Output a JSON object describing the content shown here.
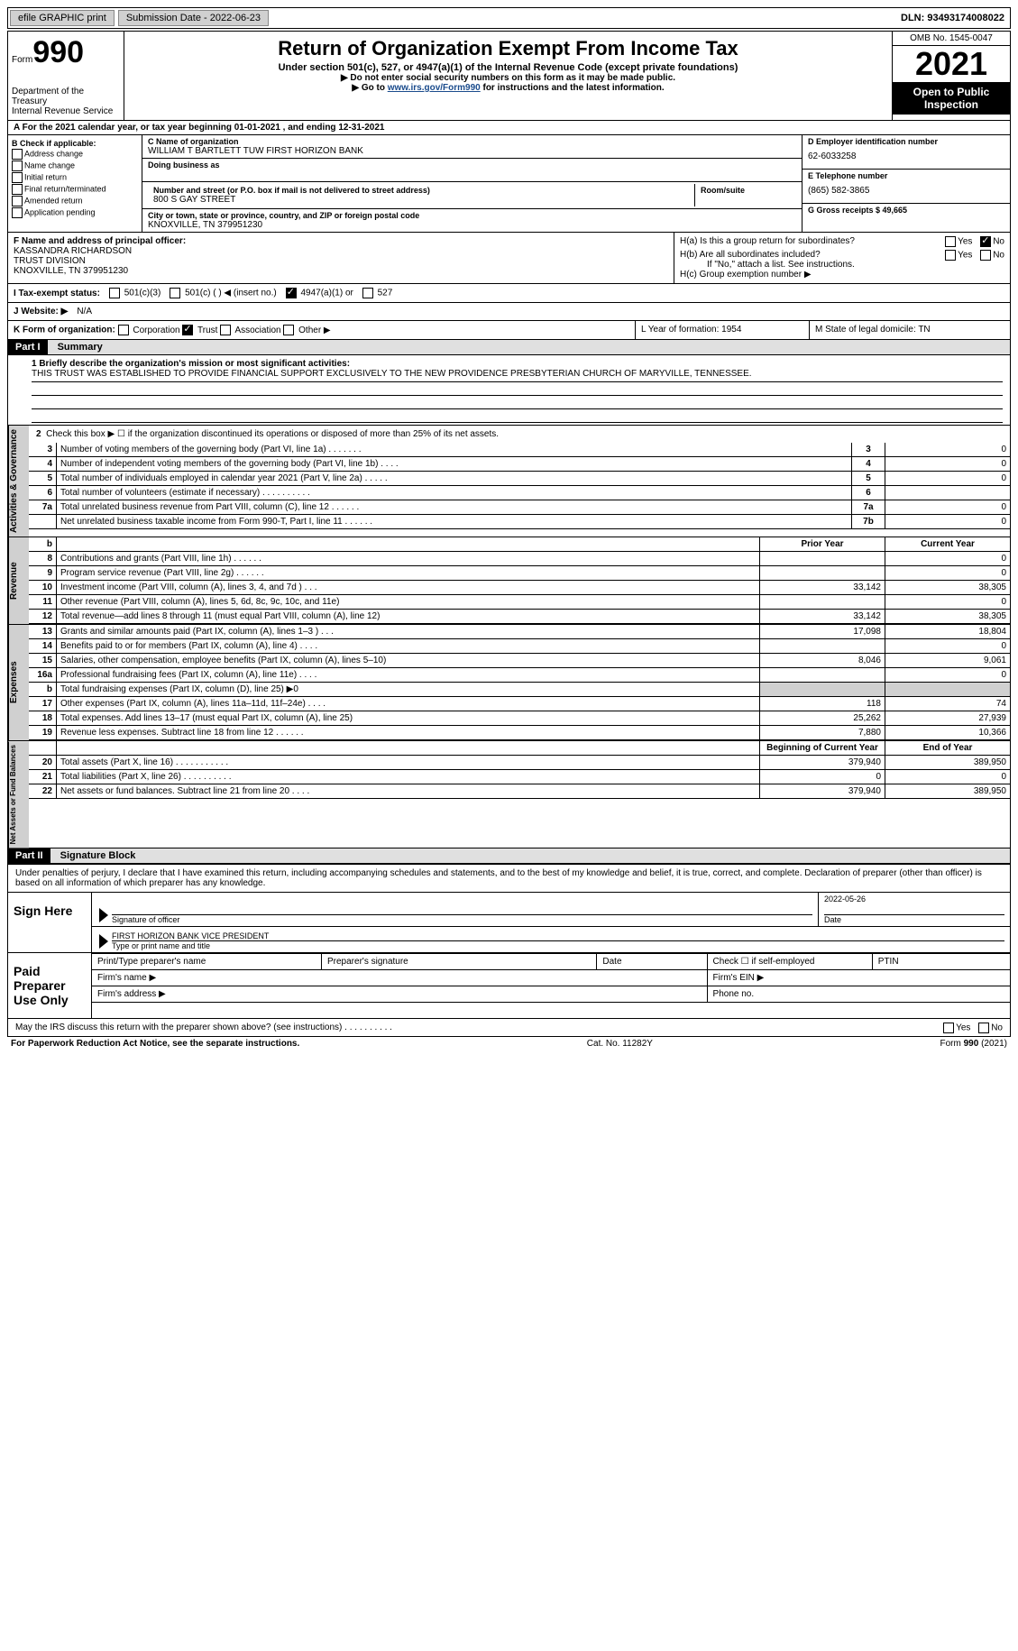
{
  "topbar": {
    "efile_label": "efile GRAPHIC print",
    "submission_label": "Submission Date - 2022-06-23",
    "dln_label": "DLN: 93493174008022"
  },
  "header": {
    "form_word": "Form",
    "form_num": "990",
    "dept": "Department of the Treasury",
    "irs": "Internal Revenue Service",
    "title": "Return of Organization Exempt From Income Tax",
    "subtitle": "Under section 501(c), 527, or 4947(a)(1) of the Internal Revenue Code (except private foundations)",
    "note1": "▶ Do not enter social security numbers on this form as it may be made public.",
    "note2_pre": "▶ Go to ",
    "note2_link": "www.irs.gov/Form990",
    "note2_post": " for instructions and the latest information.",
    "omb": "OMB No. 1545-0047",
    "year": "2021",
    "open": "Open to Public Inspection"
  },
  "lineA": "A For the 2021 calendar year, or tax year beginning 01-01-2021    , and ending 12-31-2021",
  "boxB": {
    "label": "B Check if applicable:",
    "opts": [
      "Address change",
      "Name change",
      "Initial return",
      "Final return/terminated",
      "Amended return",
      "Application pending"
    ]
  },
  "boxC": {
    "name_lbl": "C Name of organization",
    "name": "WILLIAM T BARTLETT TUW FIRST HORIZON BANK",
    "dba_lbl": "Doing business as",
    "street_lbl": "Number and street (or P.O. box if mail is not delivered to street address)",
    "room_lbl": "Room/suite",
    "street": "800 S GAY STREET",
    "city_lbl": "City or town, state or province, country, and ZIP or foreign postal code",
    "city": "KNOXVILLE, TN  379951230"
  },
  "boxD": {
    "ein_lbl": "D Employer identification number",
    "ein": "62-6033258",
    "tel_lbl": "E Telephone number",
    "tel": "(865) 582-3865",
    "gross_lbl": "G Gross receipts $ 49,665"
  },
  "boxF": {
    "lbl": "F Name and address of principal officer:",
    "l1": "KASSANDRA RICHARDSON",
    "l2": "TRUST DIVISION",
    "l3": "KNOXVILLE, TN  379951230"
  },
  "boxH": {
    "ha": "H(a)  Is this a group return for subordinates?",
    "hb": "H(b)  Are all subordinates included?",
    "hb_note": "If \"No,\" attach a list. See instructions.",
    "hc": "H(c)  Group exemption number ▶",
    "yes": "Yes",
    "no": "No"
  },
  "taxI": {
    "lbl": "I  Tax-exempt status:",
    "o1": "501(c)(3)",
    "o2": "501(c) (   ) ◀ (insert no.)",
    "o3": "4947(a)(1) or",
    "o4": "527"
  },
  "taxJ": {
    "lbl": "J  Website: ▶",
    "val": "N/A"
  },
  "rowK": {
    "lbl": "K Form of organization:",
    "o1": "Corporation",
    "o2": "Trust",
    "o3": "Association",
    "o4": "Other ▶",
    "L": "L Year of formation: 1954",
    "M": "M State of legal domicile: TN"
  },
  "part1": {
    "hdr": "Part I",
    "title": "Summary",
    "mission_lbl": "1  Briefly describe the organization's mission or most significant activities:",
    "mission": "THIS TRUST WAS ESTABLISHED TO PROVIDE FINANCIAL SUPPORT EXCLUSIVELY TO THE NEW PROVIDENCE PRESBYTERIAN CHURCH OF MARYVILLE, TENNESSEE.",
    "line2": "Check this box ▶ ☐ if the organization discontinued its operations or disposed of more than 25% of its net assets.",
    "tabs": {
      "ag": "Activities & Governance",
      "rev": "Revenue",
      "exp": "Expenses",
      "na": "Net Assets or Fund Balances"
    },
    "rows_ag": [
      {
        "n": "3",
        "d": "Number of voting members of the governing body (Part VI, line 1a)  .    .    .    .    .    .    .",
        "b": "3",
        "v": "0"
      },
      {
        "n": "4",
        "d": "Number of independent voting members of the governing body (Part VI, line 1b)  .    .    .    .",
        "b": "4",
        "v": "0"
      },
      {
        "n": "5",
        "d": "Total number of individuals employed in calendar year 2021 (Part V, line 2a)  .    .    .    .    .",
        "b": "5",
        "v": "0"
      },
      {
        "n": "6",
        "d": "Total number of volunteers (estimate if necessary)    .    .    .    .    .    .    .    .    .    .",
        "b": "6",
        "v": ""
      },
      {
        "n": "7a",
        "d": "Total unrelated business revenue from Part VIII, column (C), line 12   .    .    .    .    .    .",
        "b": "7a",
        "v": "0"
      },
      {
        "n": "",
        "d": "Net unrelated business taxable income from Form 990-T, Part I, line 11   .    .    .    .    .    .",
        "b": "7b",
        "v": "0"
      }
    ],
    "col_hdr": {
      "py": "Prior Year",
      "cy": "Current Year",
      "by": "Beginning of Current Year",
      "ey": "End of Year"
    },
    "rows_rev": [
      {
        "n": "8",
        "d": "Contributions and grants (Part VIII, line 1h)   .    .    .    .    .    .",
        "py": "",
        "cy": "0"
      },
      {
        "n": "9",
        "d": "Program service revenue (Part VIII, line 2g)   .    .    .    .    .    .",
        "py": "",
        "cy": "0"
      },
      {
        "n": "10",
        "d": "Investment income (Part VIII, column (A), lines 3, 4, and 7d )   .    .    .",
        "py": "33,142",
        "cy": "38,305"
      },
      {
        "n": "11",
        "d": "Other revenue (Part VIII, column (A), lines 5, 6d, 8c, 9c, 10c, and 11e)",
        "py": "",
        "cy": "0"
      },
      {
        "n": "12",
        "d": "Total revenue—add lines 8 through 11 (must equal Part VIII, column (A), line 12)",
        "py": "33,142",
        "cy": "38,305"
      }
    ],
    "rows_exp": [
      {
        "n": "13",
        "d": "Grants and similar amounts paid (Part IX, column (A), lines 1–3 )  .    .    .",
        "py": "17,098",
        "cy": "18,804"
      },
      {
        "n": "14",
        "d": "Benefits paid to or for members (Part IX, column (A), line 4)  .    .    .    .",
        "py": "",
        "cy": "0"
      },
      {
        "n": "15",
        "d": "Salaries, other compensation, employee benefits (Part IX, column (A), lines 5–10)",
        "py": "8,046",
        "cy": "9,061"
      },
      {
        "n": "16a",
        "d": "Professional fundraising fees (Part IX, column (A), line 11e)  .    .    .    .",
        "py": "",
        "cy": "0"
      },
      {
        "n": "b",
        "d": "Total fundraising expenses (Part IX, column (D), line 25) ▶0",
        "py": "",
        "cy": "",
        "shade": true
      },
      {
        "n": "17",
        "d": "Other expenses (Part IX, column (A), lines 11a–11d, 11f–24e)  .    .    .    .",
        "py": "118",
        "cy": "74"
      },
      {
        "n": "18",
        "d": "Total expenses. Add lines 13–17 (must equal Part IX, column (A), line 25)",
        "py": "25,262",
        "cy": "27,939"
      },
      {
        "n": "19",
        "d": "Revenue less expenses. Subtract line 18 from line 12  .    .    .    .    .    .",
        "py": "7,880",
        "cy": "10,366"
      }
    ],
    "rows_na": [
      {
        "n": "20",
        "d": "Total assets (Part X, line 16)  .    .    .    .    .    .    .    .    .    .    .",
        "py": "379,940",
        "cy": "389,950"
      },
      {
        "n": "21",
        "d": "Total liabilities (Part X, line 26)  .    .    .    .    .    .    .    .    .    .",
        "py": "0",
        "cy": "0"
      },
      {
        "n": "22",
        "d": "Net assets or fund balances. Subtract line 21 from line 20   .    .    .    .",
        "py": "379,940",
        "cy": "389,950"
      }
    ],
    "row_b": "b"
  },
  "part2": {
    "hdr": "Part II",
    "title": "Signature Block",
    "decl": "Under penalties of perjury, I declare that I have examined this return, including accompanying schedules and statements, and to the best of my knowledge and belief, it is true, correct, and complete. Declaration of preparer (other than officer) is based on all information of which preparer has any knowledge.",
    "sign_here": "Sign Here",
    "sig_officer": "Signature of officer",
    "sig_date": "2022-05-26",
    "date_lbl": "Date",
    "name_title": "FIRST HORIZON BANK  VICE PRESIDENT",
    "type_lbl": "Type or print name and title",
    "paid": "Paid Preparer Use Only",
    "pp_name": "Print/Type preparer's name",
    "pp_sig": "Preparer's signature",
    "pp_date": "Date",
    "pp_check": "Check ☐ if self-employed",
    "pp_ptin": "PTIN",
    "firm_name": "Firm's name    ▶",
    "firm_ein": "Firm's EIN ▶",
    "firm_addr": "Firm's address ▶",
    "phone": "Phone no.",
    "may_irs": "May the IRS discuss this return with the preparer shown above? (see instructions)   .    .    .    .    .    .    .    .    .    ."
  },
  "footer": {
    "pra": "For Paperwork Reduction Act Notice, see the separate instructions.",
    "cat": "Cat. No. 11282Y",
    "form": "Form 990 (2021)"
  }
}
